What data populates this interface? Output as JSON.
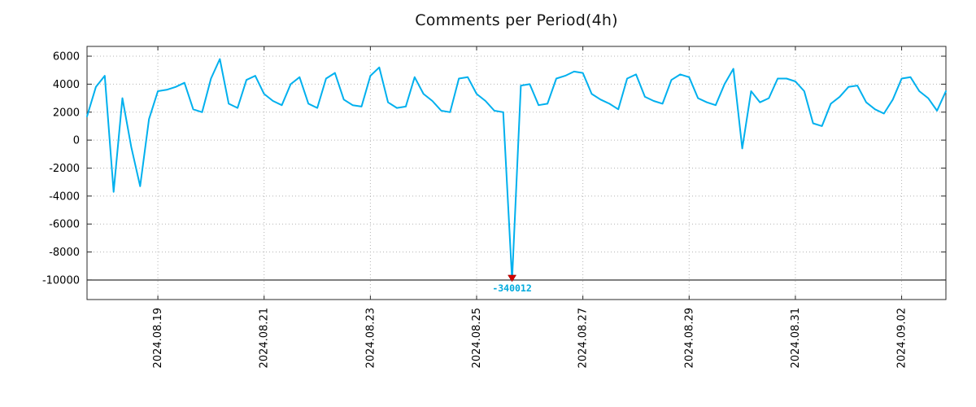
{
  "colors": {
    "line": "#00b0ee",
    "marker": "#d40000",
    "annotation": "#00aadd",
    "grid": "#b3b3b3",
    "frame": "#2a2a2a"
  },
  "chart_data": {
    "type": "line",
    "title": "Comments per Period(4h)",
    "xlabel": "",
    "ylabel": "",
    "grid": true,
    "legend": "none",
    "x_start": "2024-08-17 16:00",
    "x_step_hours": 4,
    "values": [
      1700,
      3800,
      4600,
      -3700,
      3000,
      -500,
      -3300,
      1500,
      3500,
      3600,
      3800,
      4100,
      2200,
      2000,
      4400,
      5800,
      2600,
      2300,
      4300,
      4600,
      3300,
      2800,
      2500,
      4000,
      4500,
      2600,
      2300,
      4400,
      4800,
      2900,
      2500,
      2400,
      4600,
      5200,
      2700,
      2300,
      2400,
      4500,
      3300,
      2800,
      2100,
      2000,
      4400,
      4500,
      3300,
      2800,
      2100,
      2000,
      -340012,
      3900,
      4000,
      2500,
      2600,
      4400,
      4600,
      4900,
      4800,
      3300,
      2900,
      2600,
      2200,
      4400,
      4700,
      3100,
      2800,
      2600,
      4300,
      4700,
      4500,
      3000,
      2700,
      2500,
      4000,
      5100,
      -600,
      3500,
      2700,
      3000,
      4400,
      4400,
      4200,
      3500,
      1200,
      1000,
      2600,
      3100,
      3800,
      3900,
      2700,
      2200,
      1900,
      2900,
      4400,
      4500,
      3500,
      3000,
      2100,
      3500
    ],
    "y_ticks": [
      6000,
      4000,
      2000,
      0,
      -2000,
      -4000,
      -6000,
      -8000,
      -10000
    ],
    "ylim": [
      -11400,
      6700
    ],
    "clip_min": -10000,
    "baseline": -10000,
    "x_tick_labels": [
      "2024.08.19",
      "2024.08.21",
      "2024.08.23",
      "2024.08.25",
      "2024.08.27",
      "2024.08.29",
      "2024.08.31",
      "2024.09.02"
    ],
    "x_tick_indices": [
      8,
      20,
      32,
      44,
      56,
      68,
      80,
      92
    ],
    "annotation": {
      "text": "-340012",
      "index": 48,
      "value": -340012
    }
  }
}
